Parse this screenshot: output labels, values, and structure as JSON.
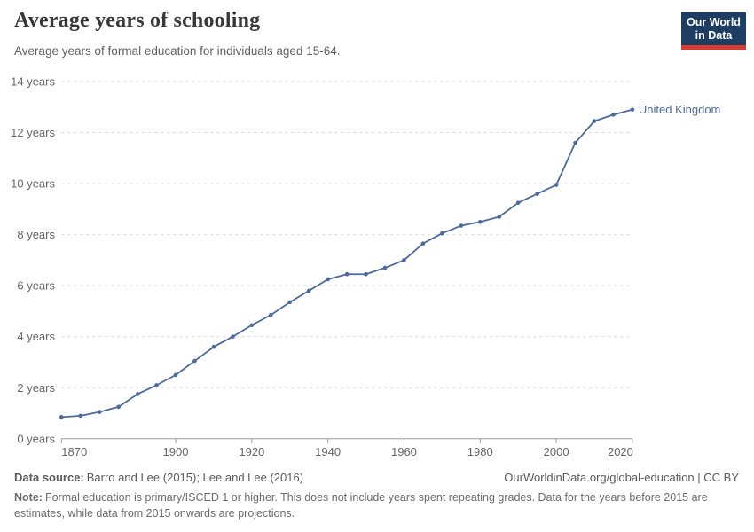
{
  "header": {
    "title": "Average years of schooling",
    "subtitle": "Average years of formal education for individuals aged 15-64.",
    "logo": {
      "line1": "Our World",
      "line2": "in Data"
    }
  },
  "chart_data": {
    "type": "line",
    "title": "Average years of schooling",
    "x": [
      1870,
      1875,
      1880,
      1885,
      1890,
      1895,
      1900,
      1905,
      1910,
      1915,
      1920,
      1925,
      1930,
      1935,
      1940,
      1945,
      1950,
      1955,
      1960,
      1965,
      1970,
      1975,
      1980,
      1985,
      1990,
      1995,
      2000,
      2005,
      2010,
      2015,
      2020
    ],
    "series": [
      {
        "name": "United Kingdom",
        "color": "#4c6a9c",
        "values": [
          0.85,
          0.9,
          1.05,
          1.25,
          1.75,
          2.1,
          2.5,
          3.05,
          3.6,
          4.0,
          4.45,
          4.85,
          5.35,
          5.8,
          6.25,
          6.45,
          6.45,
          6.7,
          7.0,
          7.65,
          8.05,
          8.35,
          8.5,
          8.7,
          9.25,
          9.6,
          9.95,
          11.6,
          12.45,
          12.7,
          12.9
        ]
      }
    ],
    "xlim": [
      1870,
      2020
    ],
    "ylim": [
      0,
      14
    ],
    "x_ticks": [
      1870,
      1900,
      1920,
      1940,
      1960,
      1980,
      2000,
      2020
    ],
    "x_tick_labels": [
      "1870",
      "1900",
      "1920",
      "1940",
      "1960",
      "1980",
      "2000",
      "2020"
    ],
    "y_ticks": [
      0,
      2,
      4,
      6,
      8,
      10,
      12,
      14
    ],
    "y_tick_labels": [
      "0 years",
      "2 years",
      "4 years",
      "6 years",
      "8 years",
      "10 years",
      "12 years",
      "14 years"
    ],
    "grid": "horizontal-dashed",
    "legend": "label-at-line-end",
    "colors": {
      "grid": "#d9d9d9",
      "axis": "#9a9a9a",
      "tick_text": "#666666"
    }
  },
  "footer": {
    "source_label": "Data source:",
    "source_text": "Barro and Lee (2015); Lee and Lee (2016)",
    "license_text": "OurWorldinData.org/global-education | CC BY",
    "note_label": "Note:",
    "note_text": "Formal education is primary/ISCED 1 or higher. This does not include years spent repeating grades. Data for the years before 2015 are estimates, while data from 2015 onwards are projections."
  }
}
